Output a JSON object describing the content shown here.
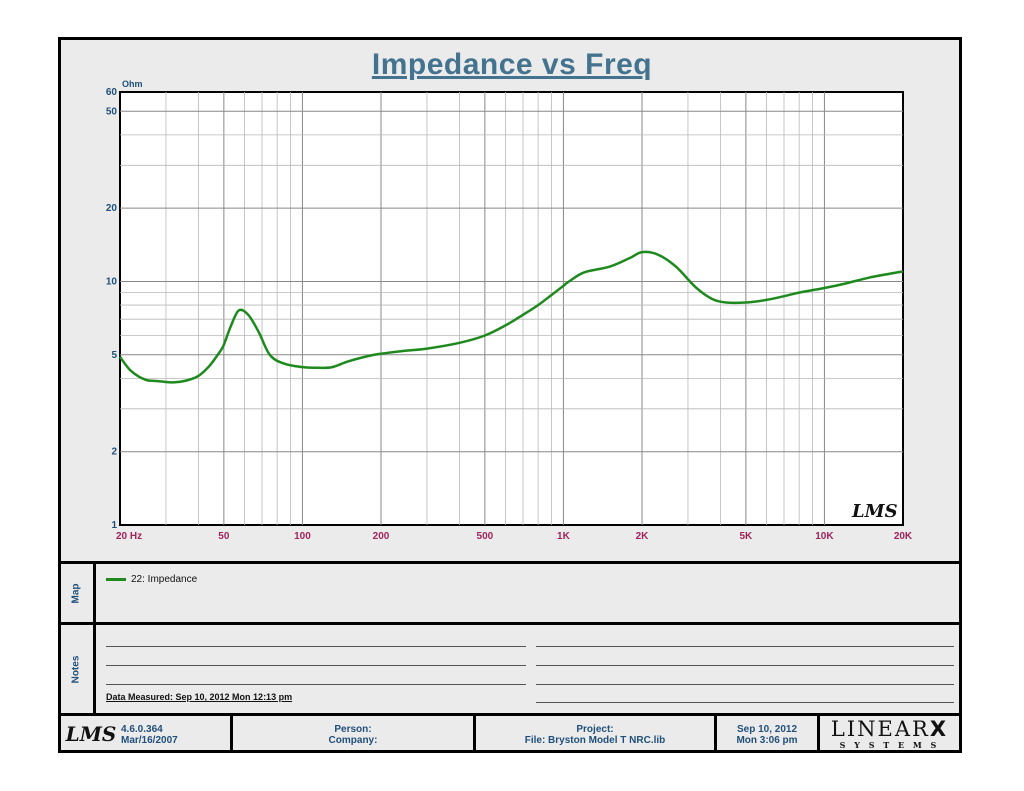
{
  "header": {
    "title": "Impedance vs Freq"
  },
  "chart_data": {
    "type": "line",
    "title": "Impedance vs Freq",
    "ylabel": "Ohm",
    "xlabel": "",
    "x_scale": "log",
    "y_scale": "log",
    "xlim": [
      20,
      20000
    ],
    "ylim": [
      1,
      60
    ],
    "grid": true,
    "x_ticks": [
      {
        "v": 20,
        "label": "20  Hz"
      },
      {
        "v": 50,
        "label": "50"
      },
      {
        "v": 100,
        "label": "100"
      },
      {
        "v": 200,
        "label": "200"
      },
      {
        "v": 500,
        "label": "500"
      },
      {
        "v": 1000,
        "label": "1K"
      },
      {
        "v": 2000,
        "label": "2K"
      },
      {
        "v": 5000,
        "label": "5K"
      },
      {
        "v": 10000,
        "label": "10K"
      },
      {
        "v": 20000,
        "label": "20K"
      }
    ],
    "y_ticks": [
      {
        "v": 1,
        "label": "1"
      },
      {
        "v": 2,
        "label": "2"
      },
      {
        "v": 5,
        "label": "5"
      },
      {
        "v": 10,
        "label": "10"
      },
      {
        "v": 20,
        "label": "20"
      },
      {
        "v": 50,
        "label": "50"
      },
      {
        "v": 60,
        "label": "60"
      }
    ],
    "series": [
      {
        "name": "22: Impedance",
        "color": "#1e8a1e",
        "x": [
          20,
          22,
          25,
          28,
          32,
          36,
          40,
          44,
          48,
          50,
          53,
          57,
          62,
          68,
          75,
          85,
          100,
          115,
          130,
          150,
          180,
          200,
          250,
          300,
          400,
          500,
          600,
          700,
          800,
          900,
          1000,
          1050,
          1200,
          1500,
          1800,
          2000,
          2300,
          2700,
          3200,
          3700,
          4200,
          5000,
          6000,
          7000,
          8000,
          10000,
          12000,
          15000,
          20000
        ],
        "y": [
          4.9,
          4.3,
          3.95,
          3.9,
          3.85,
          3.92,
          4.1,
          4.5,
          5.1,
          5.5,
          6.5,
          7.6,
          7.3,
          6.2,
          5.0,
          4.6,
          4.45,
          4.42,
          4.45,
          4.7,
          4.95,
          5.05,
          5.2,
          5.3,
          5.6,
          6.0,
          6.6,
          7.3,
          8.0,
          8.8,
          9.6,
          10.0,
          10.9,
          11.5,
          12.5,
          13.2,
          12.9,
          11.5,
          9.5,
          8.5,
          8.2,
          8.2,
          8.4,
          8.7,
          9.0,
          9.4,
          9.8,
          10.4,
          11.0
        ]
      }
    ]
  },
  "watermark": "LMS",
  "map": {
    "label": "Map",
    "legend_entry": "22: Impedance"
  },
  "notes": {
    "label": "Notes",
    "data_measured": "Data Measured: Sep 10, 2012  Mon 12:13 pm"
  },
  "footer": {
    "logo": "LMS",
    "version": "4.6.0.364",
    "version_date": "Mar/16/2007",
    "person": "Person:",
    "company": "Company:",
    "project": "Project:",
    "file": "File: Bryston Model T NRC.lib",
    "date": "Sep 10, 2012",
    "time": "Mon  3:06 pm",
    "brand_main": "LINEAR",
    "brand_x": "X",
    "brand_sub": "S Y S T E M S"
  }
}
